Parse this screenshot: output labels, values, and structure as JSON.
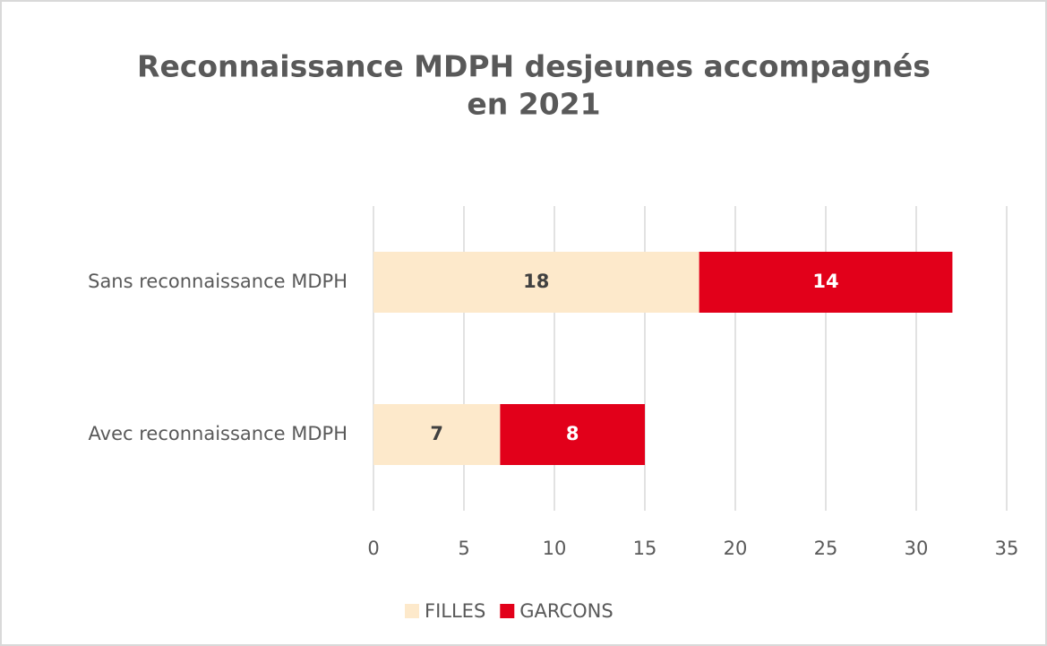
{
  "chart_data": {
    "type": "stacked-bar-horizontal",
    "title": [
      "Reconnaissance MDPH desjeunes accompagnés",
      "en 2021"
    ],
    "categories": [
      "Sans reconnaissance MDPH",
      "Avec reconnaissance MDPH"
    ],
    "series": [
      {
        "name": "FILLES",
        "color": "#fde9cb",
        "label_color": "#404040",
        "values": [
          18,
          7
        ]
      },
      {
        "name": "GARCONS",
        "color": "#e2001a",
        "label_color": "#ffffff",
        "values": [
          14,
          8
        ]
      }
    ],
    "xlim": [
      0,
      35
    ],
    "xticks": [
      0,
      5,
      10,
      15,
      20,
      25,
      30,
      35
    ],
    "grid": true,
    "legend": "bottom"
  }
}
